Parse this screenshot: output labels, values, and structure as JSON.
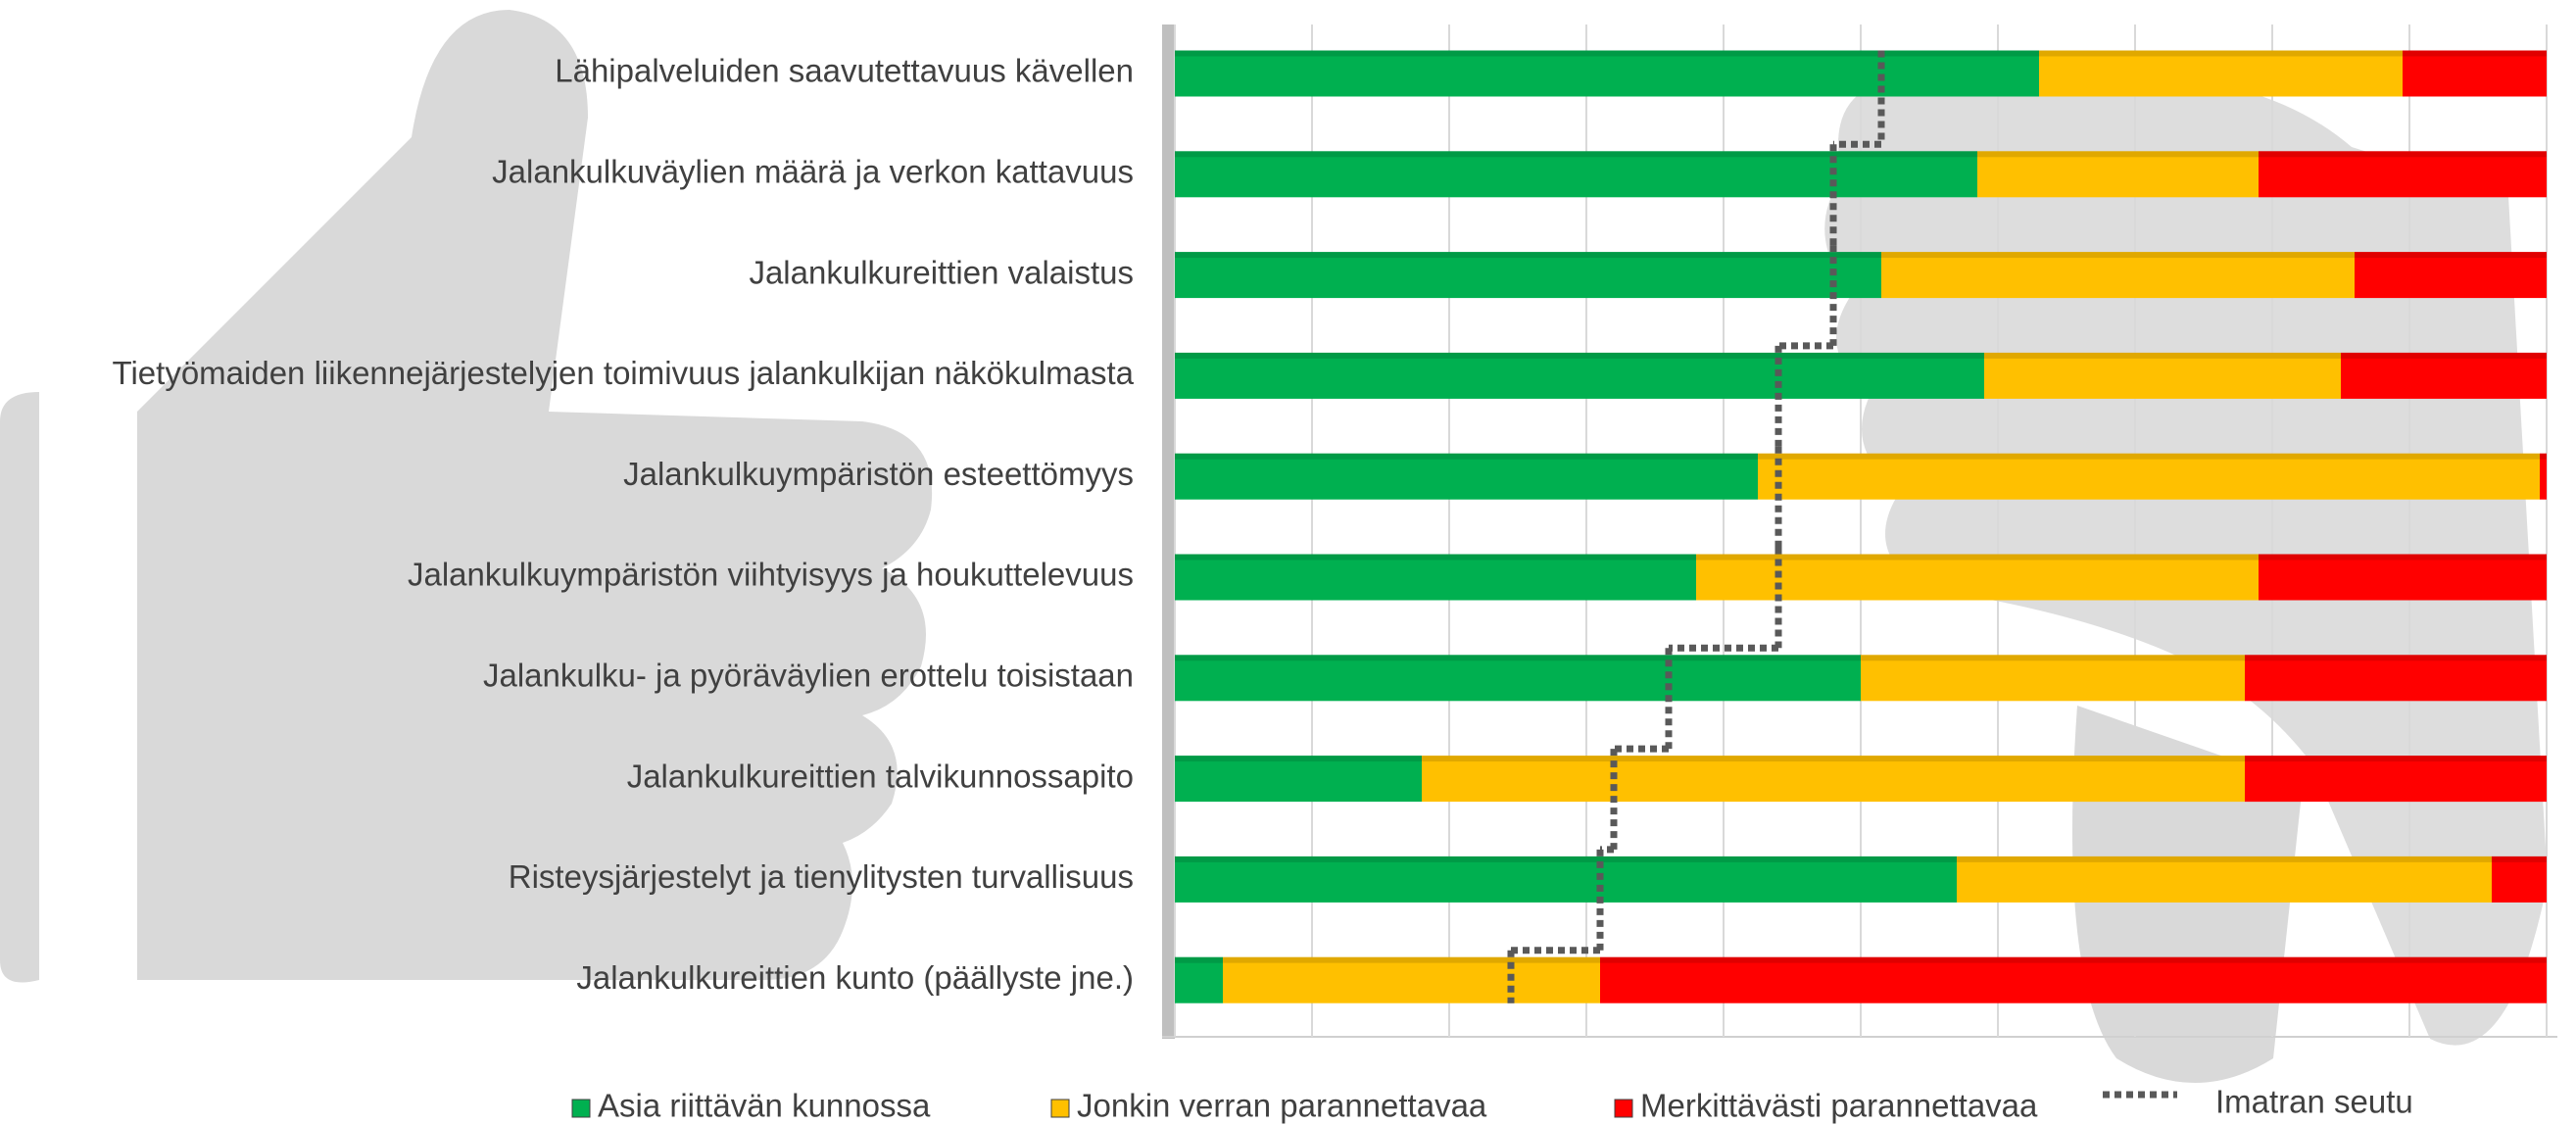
{
  "chart_data": {
    "type": "stacked-bar-horizontal",
    "categories": [
      "Lähipalveluiden saavutettavuus kävellen",
      "Jalankulkuväylien määrä ja verkon kattavuus",
      "Jalankulkureittien valaistus",
      "Tietyömaiden liikennejärjestelyjen toimivuus jalankulkijan näkökulmasta",
      "Jalankulkuympäristön esteettömyys",
      "Jalankulkuympäristön viihtyisyys ja houkuttelevuus",
      "Jalankulku- ja pyöräväylien erottelu toisistaan",
      "Jalankulkureittien talvikunnossapito",
      "Risteysjärjestelyt ja tienylitysten turvallisuus",
      "Jalankulkureittien kunto (päällyste jne.)"
    ],
    "series": [
      {
        "name": "Asia riittävän  kunnossa",
        "color": "#00b050",
        "values": [
          63,
          58.5,
          51.5,
          59,
          42.5,
          38,
          50,
          18,
          57,
          3.5
        ]
      },
      {
        "name": "Jonkin verran  parannettavaa",
        "color": "#ffc000",
        "values": [
          26.5,
          20.5,
          34.5,
          26,
          57,
          41,
          28,
          60,
          39,
          27.5
        ]
      },
      {
        "name": "Merkittävästi  parannettavaa",
        "color": "#ff0000",
        "values": [
          10.5,
          21,
          14,
          15,
          0.5,
          21,
          22,
          22,
          4,
          69
        ]
      }
    ],
    "line": {
      "name": "Imatran seutu",
      "color": "#595959",
      "values": [
        51.5,
        48,
        48,
        44,
        44,
        44,
        36,
        32,
        31,
        24.5
      ]
    },
    "xlim": [
      0,
      100
    ],
    "xticks": [
      0,
      10,
      20,
      30,
      40,
      50,
      60,
      70,
      80,
      90,
      100
    ],
    "grid": true,
    "legend": "bottom"
  }
}
